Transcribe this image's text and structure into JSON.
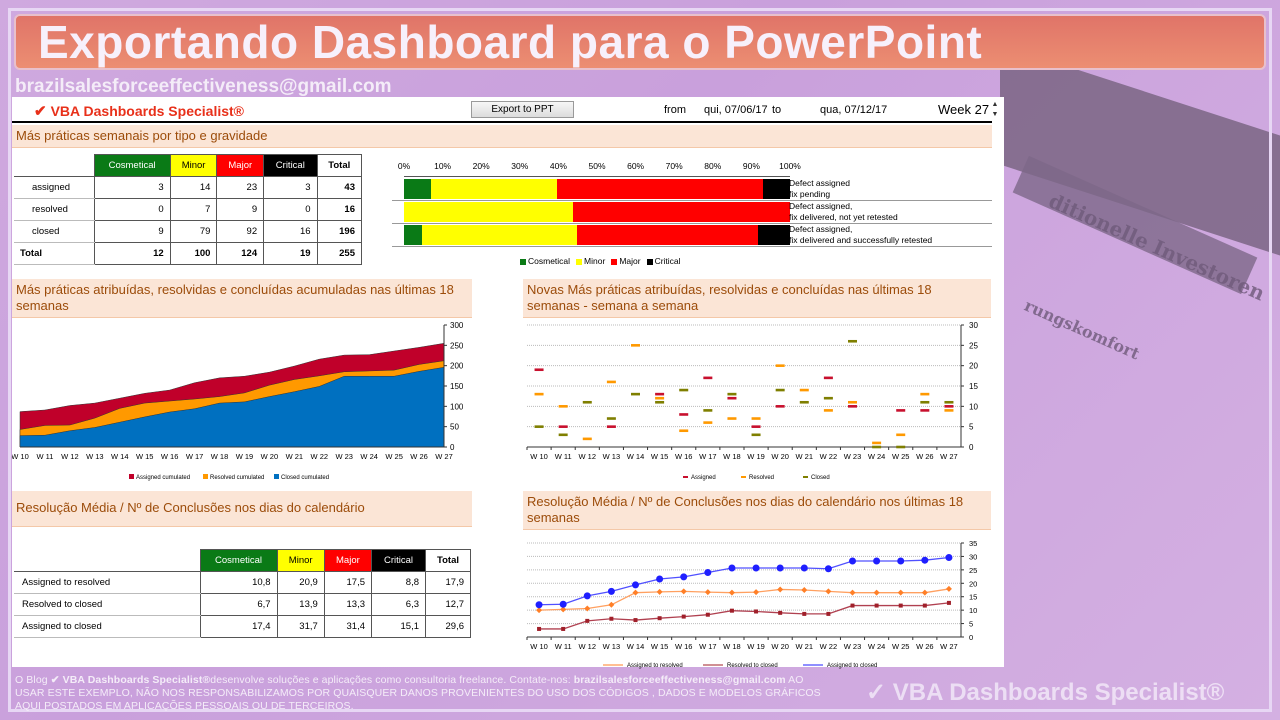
{
  "banner": {
    "title": "Exportando Dashboard para o PowerPoint",
    "email": "brazilsalesforceeffectiveness@gmail.com"
  },
  "header": {
    "brand_check": "✔",
    "brand": "VBA Dashboards Specialist®",
    "export_button": "Export to PPT",
    "from_label": "from",
    "from_date": "qui, 07/06/17",
    "to_label": "to",
    "to_date": "qua, 07/12/17",
    "week_label": "Week",
    "week_value": "27",
    "spinner_up": "▲",
    "spinner_down": "▼"
  },
  "colors": {
    "cosmetical": "#0a7a16",
    "minor": "#ffff00",
    "major": "#ff0000",
    "critical": "#000000",
    "assigned_cum": "#c0002a",
    "resolved_cum": "#ff9900",
    "closed_cum": "#0070c0",
    "assigned": "#c8102e",
    "resolved": "#ff9900",
    "closed": "#7f7f00",
    "a2r": "#ff7f27",
    "r2c": "#a0202a",
    "a2c": "#1f1fff"
  },
  "section1": {
    "title": "Más práticas semanais por tipo e gravidade",
    "columns": [
      "Cosmetical",
      "Minor",
      "Major",
      "Critical",
      "Total"
    ],
    "rows": [
      {
        "label": "assigned",
        "values": [
          "3",
          "14",
          "23",
          "3",
          "43"
        ],
        "desc1": "Defect assigned",
        "desc2": "fix pending"
      },
      {
        "label": "resolved",
        "values": [
          "0",
          "7",
          "9",
          "0",
          "16"
        ],
        "desc1": "Defect assigned,",
        "desc2": "fix delivered, not yet retested"
      },
      {
        "label": "closed",
        "values": [
          "9",
          "79",
          "92",
          "16",
          "196"
        ],
        "desc1": "Defect assigned,",
        "desc2": "fix delivered and successfully retested"
      }
    ],
    "total": {
      "label": "Total",
      "values": [
        "12",
        "100",
        "124",
        "19",
        "255"
      ]
    },
    "axis": [
      "0%",
      "10%",
      "20%",
      "30%",
      "40%",
      "50%",
      "60%",
      "70%",
      "80%",
      "90%",
      "100%"
    ],
    "legend": [
      "Cosmetical",
      "Minor",
      "Major",
      "Critical"
    ]
  },
  "section2": {
    "title": "Más práticas atribuídas, resolvidas e concluídas acumuladas nas últimas 18 semanas",
    "legend": [
      "Assigned cumulated",
      "Resolved cumulated",
      "Closed cumulated"
    ]
  },
  "section3": {
    "title": "Novas Más práticas atribuídas, resolvidas e concluídas nas últimas 18 semanas - semana a semana",
    "legend": [
      "Assigned",
      "Resolved",
      "Closed"
    ]
  },
  "section4": {
    "title": "Resolução Média / Nº de Conclusões nos dias do calendário",
    "columns": [
      "Cosmetical",
      "Minor",
      "Major",
      "Critical",
      "Total"
    ],
    "rows": [
      {
        "label": "Assigned to resolved",
        "values": [
          "10,8",
          "20,9",
          "17,5",
          "8,8",
          "17,9"
        ]
      },
      {
        "label": "Resolved to closed",
        "values": [
          "6,7",
          "13,9",
          "13,3",
          "6,3",
          "12,7"
        ]
      },
      {
        "label": "Assigned to closed",
        "values": [
          "17,4",
          "31,7",
          "31,4",
          "15,1",
          "29,6"
        ]
      }
    ]
  },
  "section5": {
    "title": "Resolução Média / Nº de Conclusões nos dias do calendário nos últimas 18 semanas",
    "legend": [
      "Assigned to resolved",
      "Resolved to closed",
      "Assigned to closed"
    ]
  },
  "footer": {
    "prefix": "O Blog ",
    "brand": "✔ VBA Dashboards Specialist®",
    "text1": "desenvolve soluções e aplicações como consultoria freelance. Contate-nos: ",
    "email": "brazilsalesforceeffectiveness@gmail.com",
    "text2": " AO USAR ESTE EXEMPLO,  NÃO NOS RESPONSABILIZAMOS  POR QUAISQUER  DANOS PROVENIENTES  DO USO DOS CÓDIGOS , DADOS E MODELOS GRÁFICOS  AQUI POSTADOS EM  APLICAÇÕES  PESSOAIS  OU DE TERCEIROS.",
    "watermark": "✓ VBA Dashboards Specialist®"
  },
  "chart_data": [
    {
      "type": "bar",
      "stacked": "percent",
      "orientation": "horizontal",
      "title": "Más práticas semanais por tipo e gravidade",
      "categories": [
        "assigned",
        "resolved",
        "closed"
      ],
      "series": [
        {
          "name": "Cosmetical",
          "values": [
            3,
            0,
            9
          ]
        },
        {
          "name": "Minor",
          "values": [
            14,
            7,
            79
          ]
        },
        {
          "name": "Major",
          "values": [
            23,
            9,
            92
          ]
        },
        {
          "name": "Critical",
          "values": [
            3,
            0,
            16
          ]
        }
      ],
      "xlim": [
        0,
        100
      ],
      "xticks": [
        "0%",
        "10%",
        "20%",
        "30%",
        "40%",
        "50%",
        "60%",
        "70%",
        "80%",
        "90%",
        "100%"
      ],
      "legend_position": "bottom"
    },
    {
      "type": "area",
      "stacked": false,
      "title": "Más práticas atribuídas, resolvidas e concluídas acumuladas nas últimas 18 semanas",
      "categories": [
        "W 10",
        "W 11",
        "W 12",
        "W 13",
        "W 14",
        "W 15",
        "W 16",
        "W 17",
        "W 18",
        "W 19",
        "W 20",
        "W 21",
        "W 22",
        "W 23",
        "W 24",
        "W 25",
        "W 26",
        "W 27"
      ],
      "series": [
        {
          "name": "Assigned cumulated",
          "values": [
            87,
            91,
            102,
            108,
            120,
            132,
            140,
            158,
            170,
            174,
            184,
            199,
            216,
            226,
            227,
            236,
            245,
            255
          ]
        },
        {
          "name": "Resolved cumulated",
          "values": [
            43,
            53,
            54,
            71,
            95,
            108,
            113,
            118,
            124,
            133,
            152,
            166,
            175,
            185,
            187,
            189,
            203,
            212
          ]
        },
        {
          "name": "Closed cumulated",
          "values": [
            28,
            29,
            40,
            48,
            61,
            74,
            86,
            94,
            108,
            111,
            124,
            136,
            149,
            174,
            174,
            174,
            186,
            196
          ]
        }
      ],
      "ylim": [
        0,
        300
      ],
      "yticks": [
        0,
        50,
        100,
        150,
        200,
        250,
        300
      ],
      "y_axis_position": "right",
      "legend_position": "bottom"
    },
    {
      "type": "scatter",
      "marker": "dash",
      "title": "Novas Más práticas atribuídas, resolvidas e concluídas nas últimas 18 semanas - semana a semana",
      "categories": [
        "W 10",
        "W 11",
        "W 12",
        "W 13",
        "W 14",
        "W 15",
        "W 16",
        "W 17",
        "W 18",
        "W 19",
        "W 20",
        "W 21",
        "W 22",
        "W 23",
        "W 24",
        "W 25",
        "W 26",
        "W 27"
      ],
      "series": [
        {
          "name": "Assigned",
          "values": [
            19,
            5,
            null,
            5,
            null,
            13,
            8,
            17,
            12,
            5,
            10,
            null,
            17,
            10,
            null,
            9,
            9,
            10
          ]
        },
        {
          "name": "Resolved",
          "values": [
            13,
            10,
            2,
            16,
            25,
            12,
            4,
            6,
            7,
            7,
            20,
            14,
            9,
            11,
            1,
            3,
            13,
            9
          ]
        },
        {
          "name": "Closed",
          "values": [
            5,
            3,
            11,
            7,
            13,
            11,
            14,
            9,
            13,
            3,
            14,
            11,
            12,
            26,
            0,
            0,
            11,
            11
          ]
        }
      ],
      "ylim": [
        0,
        30
      ],
      "yticks": [
        0,
        5,
        10,
        15,
        20,
        25,
        30
      ],
      "grid": true,
      "y_axis_position": "right",
      "legend_position": "bottom"
    },
    {
      "type": "table",
      "title": "Resolução Média / Nº de Conclusões nos dias do calendário",
      "columns": [
        "Cosmetical",
        "Minor",
        "Major",
        "Critical",
        "Total"
      ],
      "rows": [
        {
          "label": "Assigned to resolved",
          "values": [
            10.8,
            20.9,
            17.5,
            8.8,
            17.9
          ]
        },
        {
          "label": "Resolved to closed",
          "values": [
            6.7,
            13.9,
            13.3,
            6.3,
            12.7
          ]
        },
        {
          "label": "Assigned to closed",
          "values": [
            17.4,
            31.7,
            31.4,
            15.1,
            29.6
          ]
        }
      ]
    },
    {
      "type": "line",
      "title": "Resolução Média / Nº de Conclusões nos dias do calendário nos últimas 18 semanas",
      "categories": [
        "W 10",
        "W 11",
        "W 12",
        "W 13",
        "W 14",
        "W 15",
        "W 16",
        "W 17",
        "W 18",
        "W 19",
        "W 20",
        "W 21",
        "W 22",
        "W 23",
        "W 24",
        "W 25",
        "W 26",
        "W 27"
      ],
      "series": [
        {
          "name": "Assigned to resolved",
          "values": [
            10.0,
            10.3,
            10.6,
            12.0,
            16.5,
            16.8,
            17.0,
            16.7,
            16.5,
            16.7,
            17.7,
            17.5,
            17.0,
            16.5,
            16.5,
            16.5,
            16.5,
            17.9
          ]
        },
        {
          "name": "Resolved to closed",
          "values": [
            3.0,
            3.0,
            6.0,
            6.8,
            6.3,
            7.0,
            7.6,
            8.3,
            9.8,
            9.5,
            9.0,
            8.6,
            8.6,
            11.7,
            11.7,
            11.7,
            11.7,
            12.7
          ]
        },
        {
          "name": "Assigned to closed",
          "values": [
            12.0,
            12.2,
            15.3,
            17.0,
            19.4,
            21.6,
            22.4,
            24.0,
            25.7,
            25.7,
            25.7,
            25.7,
            25.4,
            28.3,
            28.3,
            28.3,
            28.6,
            29.6
          ]
        }
      ],
      "ylim": [
        0,
        35
      ],
      "yticks": [
        0,
        5,
        10,
        15,
        20,
        25,
        30,
        35
      ],
      "grid": true,
      "y_axis_position": "right",
      "legend_position": "bottom"
    }
  ]
}
